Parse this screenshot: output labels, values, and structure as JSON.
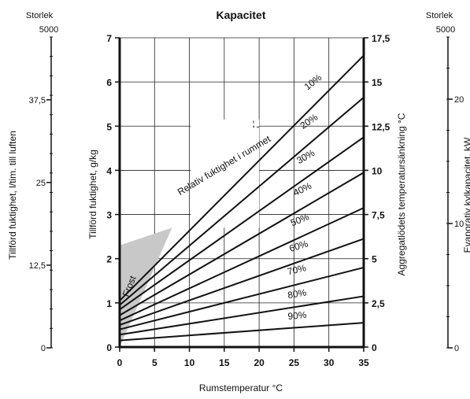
{
  "chart_data": {
    "type": "line",
    "title": "Kapacitet",
    "xlabel": "Rumstemperatur °C",
    "ylabel": "Tillförd fuktighet, g/kg",
    "ylabel_right": "Aggregatlödets temperatursänkning °C",
    "xlim": [
      0,
      35
    ],
    "ylim": [
      0,
      7
    ],
    "ylim_right": [
      0,
      17.5
    ],
    "x_ticks": [
      "0",
      "5",
      "10",
      "15",
      "20",
      "25",
      "30",
      "35"
    ],
    "y_ticks": [
      "0",
      "1",
      "2",
      "3",
      "4",
      "5",
      "6",
      "7"
    ],
    "y_right_ticks": [
      "0",
      "2,5",
      "5",
      "7,5",
      "10",
      "12,5",
      "15",
      "17,5"
    ],
    "grid": true,
    "annotation_rh": "Relativ fuktighet i rummet",
    "frost_label": "Frost",
    "frost_region": [
      [
        0,
        0
      ],
      [
        0,
        2.3
      ],
      [
        7.5,
        2.7
      ],
      [
        0,
        0
      ]
    ],
    "series": [
      {
        "name": "10%",
        "points": [
          [
            0,
            1.05
          ],
          [
            35,
            6.6
          ]
        ]
      },
      {
        "name": "20%",
        "points": [
          [
            0,
            0.95
          ],
          [
            35,
            5.65
          ]
        ]
      },
      {
        "name": "30%",
        "points": [
          [
            0,
            0.85
          ],
          [
            35,
            4.75
          ]
        ]
      },
      {
        "name": "40%",
        "points": [
          [
            0,
            0.72
          ],
          [
            35,
            3.95
          ]
        ]
      },
      {
        "name": "50%",
        "points": [
          [
            0,
            0.6
          ],
          [
            35,
            3.15
          ]
        ]
      },
      {
        "name": "60%",
        "points": [
          [
            0,
            0.5
          ],
          [
            35,
            2.45
          ]
        ]
      },
      {
        "name": "70%",
        "points": [
          [
            0,
            0.4
          ],
          [
            35,
            1.8
          ]
        ]
      },
      {
        "name": "80%",
        "points": [
          [
            0,
            0.28
          ],
          [
            35,
            1.15
          ]
        ]
      },
      {
        "name": "90%",
        "points": [
          [
            0,
            0.15
          ],
          [
            35,
            0.55
          ]
        ]
      }
    ],
    "left_scale": {
      "title": "Storlek",
      "subtitle": "5000",
      "label": "Tillförd fuktighet, l/tim. till luften",
      "ticks": [
        "0",
        "12,5",
        "25",
        "37,5"
      ],
      "range": [
        0,
        47
      ]
    },
    "right_scale": {
      "title": "Storlek",
      "subtitle": "5000",
      "label": "Evaporativ kylkapacitet, kW",
      "ticks": [
        "0",
        "10",
        "20"
      ],
      "range": [
        0,
        25
      ]
    }
  }
}
